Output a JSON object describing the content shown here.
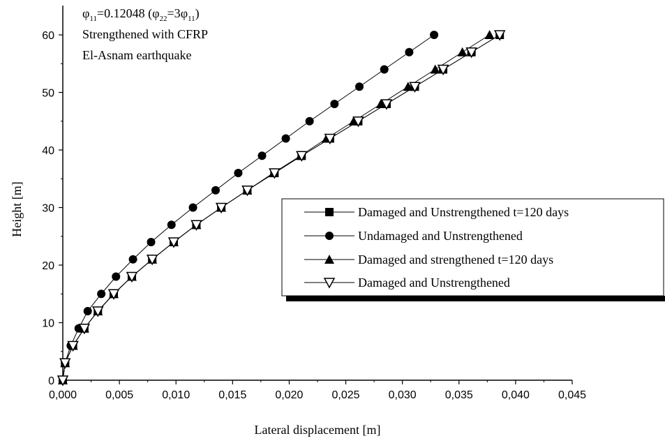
{
  "chart_data": {
    "type": "line",
    "xlabel": "Lateral displacement [m]",
    "ylabel": "Height [m]",
    "xlim": [
      0,
      0.045
    ],
    "ylim": [
      0,
      65
    ],
    "x_ticks": [
      "0,000",
      "0,005",
      "0,010",
      "0,015",
      "0,020",
      "0,025",
      "0,030",
      "0,035",
      "0,040",
      "0,045"
    ],
    "y_ticks": [
      "0",
      "10",
      "20",
      "30",
      "40",
      "50",
      "60"
    ],
    "grid": false,
    "legend_position": "center-right",
    "annotation": {
      "line1": {
        "phi_a": "φ",
        "sub_a": "11",
        "text_a": "=0.12048 (",
        "phi_b": "φ",
        "sub_b": "22",
        "text_b": "=3",
        "phi_c": "φ",
        "sub_c": "11",
        "text_c": ")"
      },
      "line2": "Strengthened with CFRP",
      "line3": "El-Asnam earthquake"
    },
    "heights": [
      0,
      3,
      6,
      9,
      12,
      15,
      18,
      21,
      24,
      27,
      30,
      33,
      36,
      39,
      42,
      45,
      48,
      51,
      54,
      57,
      60
    ],
    "series": [
      {
        "name": "Damaged and Unstrengthened t=120 days",
        "marker": "square",
        "x": [
          0,
          0.0002,
          0.0009,
          0.0019,
          0.0031,
          0.0045,
          0.0061,
          0.0079,
          0.0098,
          0.0118,
          0.014,
          0.0163,
          0.0187,
          0.0211,
          0.0236,
          0.0261,
          0.0286,
          0.0311,
          0.0336,
          0.0361,
          0.0386
        ]
      },
      {
        "name": "Undamaged and Unstrengthened",
        "marker": "circle",
        "x": [
          0,
          0.0002,
          0.0007,
          0.0014,
          0.0022,
          0.0034,
          0.0047,
          0.0062,
          0.0078,
          0.0096,
          0.0115,
          0.0135,
          0.0155,
          0.0176,
          0.0197,
          0.0218,
          0.024,
          0.0262,
          0.0284,
          0.0306,
          0.0328
        ]
      },
      {
        "name": "Damaged and strengthened t=120 days",
        "marker": "triangle-up",
        "x": [
          0,
          0.0002,
          0.0009,
          0.0019,
          0.0031,
          0.0045,
          0.0061,
          0.0079,
          0.0098,
          0.0118,
          0.014,
          0.0163,
          0.0186,
          0.021,
          0.0233,
          0.0257,
          0.0281,
          0.0305,
          0.0329,
          0.0353,
          0.0377
        ]
      },
      {
        "name": "Damaged and Unstrengthened",
        "marker": "triangle-down-open",
        "x": [
          0,
          0.0002,
          0.0009,
          0.0019,
          0.0031,
          0.0045,
          0.0061,
          0.0079,
          0.0098,
          0.0118,
          0.014,
          0.0163,
          0.0187,
          0.0211,
          0.0236,
          0.0261,
          0.0286,
          0.0311,
          0.0336,
          0.0361,
          0.0386
        ]
      }
    ]
  }
}
